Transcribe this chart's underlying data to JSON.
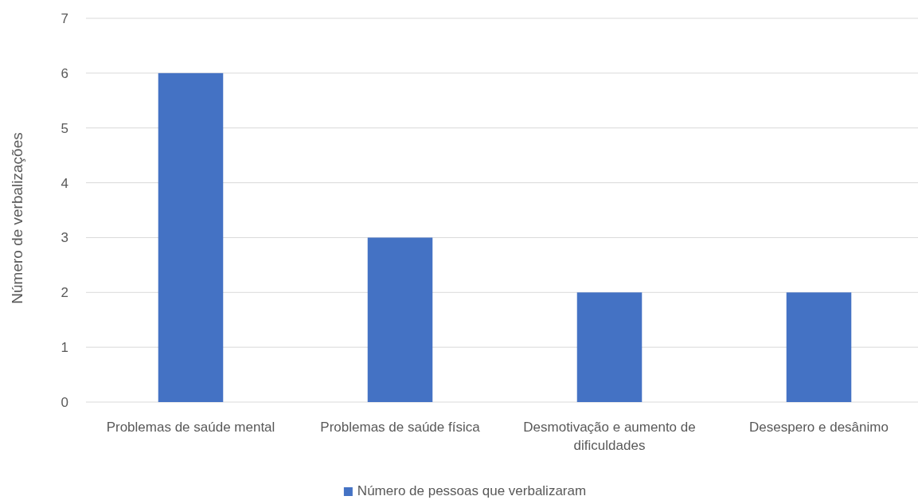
{
  "chart_data": {
    "type": "bar",
    "ylabel": "Número de verbalizações",
    "categories": [
      "Problemas de saúde mental",
      "Problemas de saúde física",
      "Desmotivação e aumento de dificuldades",
      "Desespero e desânimo"
    ],
    "series": [
      {
        "name": "Número de pessoas que verbalizaram",
        "color": "#4472c4",
        "values": [
          6,
          3,
          2,
          2
        ]
      }
    ],
    "ylim": [
      0,
      7
    ],
    "yticks": [
      0,
      1,
      2,
      3,
      4,
      5,
      6,
      7
    ],
    "grid": "y",
    "legend": "bottom"
  }
}
